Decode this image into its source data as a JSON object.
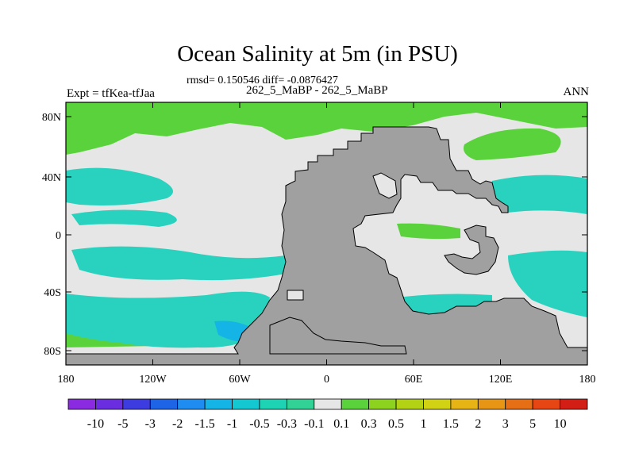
{
  "title": "Ocean Salinity at 5m (in PSU)",
  "stats_line": "rmsd= 0.150546 diff= -0.0876427",
  "period_line": "262_5_MaBP - 262_5_MaBP",
  "left_label": "Expt = tfKea-tfJaa",
  "right_label": "ANN",
  "x_tick_labels": [
    "180",
    "120W",
    "60W",
    "0",
    "60E",
    "120E",
    "180"
  ],
  "y_tick_labels": [
    "80N",
    "40N",
    "0",
    "40S",
    "80S"
  ],
  "colorbar": {
    "labels": [
      "-10",
      "-5",
      "-3",
      "-2",
      "-1.5",
      "-1",
      "-0.5",
      "-0.3",
      "-0.1",
      "0.1",
      "0.3",
      "0.5",
      "1",
      "1.5",
      "2",
      "3",
      "5",
      "10"
    ],
    "colors": [
      "#8a2be2",
      "#6a2ee0",
      "#3c3ce0",
      "#1e64e6",
      "#1e8cf0",
      "#14b4e6",
      "#14c8d2",
      "#1ed2b4",
      "#32d296",
      "#e6e6e6",
      "#5ad23c",
      "#8cd21e",
      "#b4d214",
      "#d2d214",
      "#e6b414",
      "#e69614",
      "#e66e14",
      "#e64614",
      "#d21e14"
    ]
  },
  "colors": {
    "land": "#a0a0a0",
    "near_zero": "#e6e6e6",
    "fresh_cyan": "#28d2be",
    "salty_green": "#5ad23c"
  }
}
